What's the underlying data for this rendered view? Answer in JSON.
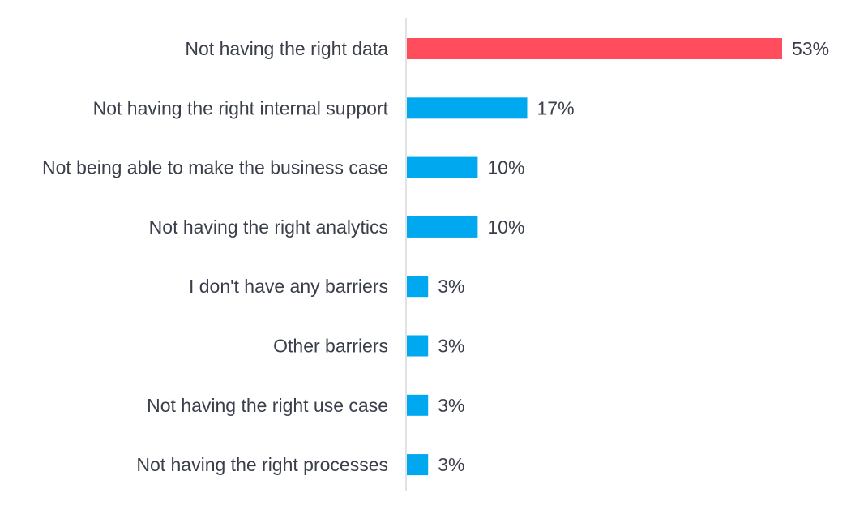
{
  "chart_data": {
    "type": "bar",
    "orientation": "horizontal",
    "categories": [
      "Not having the right data",
      "Not having the right internal support",
      "Not being able to make the business case",
      "Not having the right analytics",
      "I don't have any barriers",
      "Other barriers",
      "Not having the right use case",
      "Not having the right processes"
    ],
    "values": [
      53,
      17,
      10,
      10,
      3,
      3,
      3,
      3
    ],
    "value_labels": [
      "53%",
      "17%",
      "10%",
      "10%",
      "3%",
      "3%",
      "3%",
      "3%"
    ],
    "value_unit": "%",
    "xlim": [
      0,
      53
    ],
    "colors": {
      "highlight": "#ff4d5e",
      "default": "#00a8f0"
    },
    "highlight_index": 0,
    "grid": false,
    "legend": "none"
  }
}
